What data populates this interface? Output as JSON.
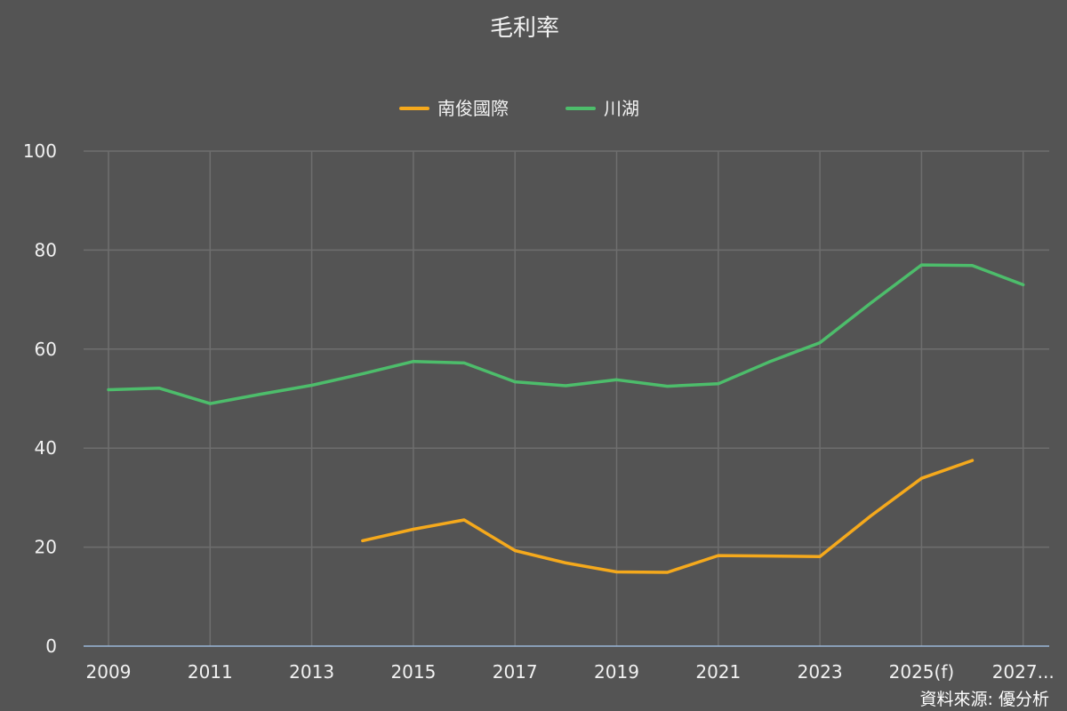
{
  "chart_data": {
    "type": "line",
    "title": "毛利率",
    "x": [
      2009,
      2010,
      2011,
      2012,
      2013,
      2014,
      2015,
      2016,
      2017,
      2018,
      2019,
      2020,
      2021,
      2022,
      2023,
      2024,
      2025,
      2026,
      2027
    ],
    "x_tick_labels": [
      "2009",
      "2011",
      "2013",
      "2015",
      "2017",
      "2019",
      "2021",
      "2023",
      "2025(f)",
      "2027..."
    ],
    "y_tick_labels": [
      "0",
      "20",
      "40",
      "60",
      "80",
      "100"
    ],
    "ylim": [
      0,
      100
    ],
    "grid": true,
    "legend_position": "top-center",
    "series": [
      {
        "name": "南俊國際",
        "color": "#f5a91c",
        "values": [
          null,
          null,
          null,
          null,
          null,
          21.3,
          23.6,
          25.5,
          19.3,
          16.8,
          15.0,
          14.9,
          18.3,
          18.2,
          18.1,
          26.3,
          33.9,
          37.5,
          null
        ]
      },
      {
        "name": "川湖",
        "color": "#4dbd6b",
        "values": [
          51.8,
          52.1,
          49.0,
          50.9,
          52.7,
          55.0,
          57.5,
          57.2,
          53.4,
          52.6,
          53.8,
          52.5,
          53.0,
          57.4,
          61.3,
          69.3,
          77.0,
          76.9,
          73.0
        ]
      }
    ],
    "source_note": "資料來源: 優分析"
  }
}
